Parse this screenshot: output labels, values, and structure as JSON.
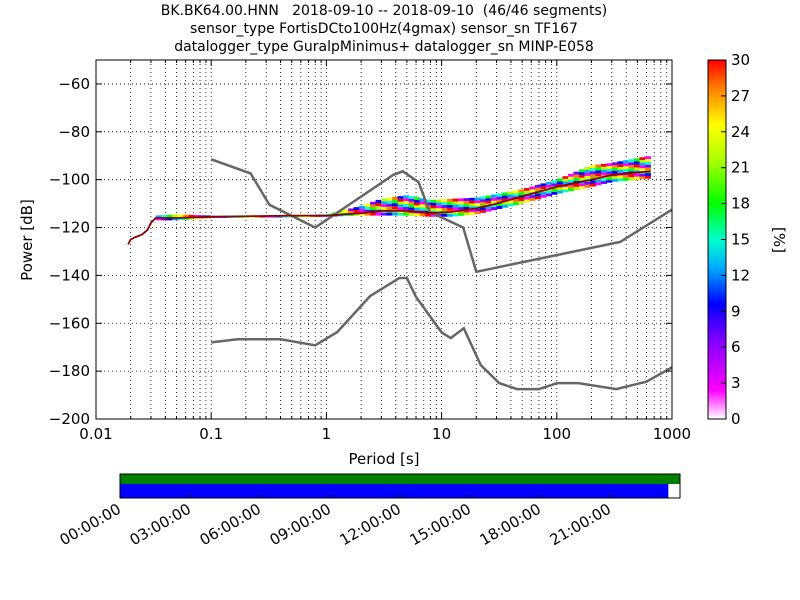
{
  "title_lines": [
    "BK.BK64.00.HNN   2018-09-10 -- 2018-09-10  (46/46 segments)",
    "sensor_type FortisDCto100Hz(4gmax) sensor_sn TF167",
    "datalogger_type GuralpMinimus+ datalogger_sn MINP-E058"
  ],
  "chart_data": [
    {
      "type": "heatmap",
      "description_free": true,
      "xlabel": "Period [s]",
      "ylabel": "Power [dB]",
      "xscale": "log",
      "xlim": [
        0.01,
        1000
      ],
      "ylim": [
        -200,
        -50
      ],
      "x_ticks": [
        {
          "v": 0.01,
          "label": "0.01"
        },
        {
          "v": 0.1,
          "label": "0.1"
        },
        {
          "v": 1,
          "label": "1"
        },
        {
          "v": 10,
          "label": "10"
        },
        {
          "v": 100,
          "label": "100"
        },
        {
          "v": 1000,
          "label": "1000"
        }
      ],
      "y_ticks": [
        {
          "v": -60,
          "label": "−60"
        },
        {
          "v": -80,
          "label": "−80"
        },
        {
          "v": -100,
          "label": "−100"
        },
        {
          "v": -120,
          "label": "−120"
        },
        {
          "v": -140,
          "label": "−140"
        },
        {
          "v": -160,
          "label": "−160"
        },
        {
          "v": -180,
          "label": "−180"
        },
        {
          "v": -200,
          "label": "−200"
        }
      ],
      "grid": "dotted",
      "colorbar": {
        "label": "[%]",
        "range": [
          0,
          30
        ],
        "ticks": [
          "0",
          "3",
          "6",
          "9",
          "12",
          "15",
          "18",
          "21",
          "24",
          "27",
          "30"
        ]
      },
      "noise_model_high": {
        "x": [
          0.1,
          0.22,
          0.32,
          0.8,
          3.8,
          4.6,
          6.3,
          7.9,
          15.4,
          20,
          354.8,
          1000
        ],
        "y": [
          -91.5,
          -97.4,
          -110.5,
          -120,
          -98,
          -96.5,
          -101,
          -113.5,
          -120,
          -138.5,
          -126,
          -112.5
        ]
      },
      "noise_model_low": {
        "x": [
          0.1,
          0.17,
          0.4,
          0.8,
          1.24,
          2.4,
          4.3,
          5,
          6,
          10,
          12,
          15.6,
          21.9,
          31.6,
          45,
          70,
          101,
          154,
          328,
          600,
          1000
        ],
        "y": [
          -168,
          -166.7,
          -166.7,
          -169.2,
          -163.7,
          -148.6,
          -141.1,
          -141.1,
          -149,
          -163.8,
          -166.2,
          -162.1,
          -177.5,
          -185,
          -187.5,
          -187.5,
          -185,
          -185,
          -187.5,
          -184.4,
          -178.4
        ]
      },
      "psd_mode": {
        "x": [
          0.019,
          0.02,
          0.022,
          0.025,
          0.028,
          0.03,
          0.033,
          0.05,
          0.1,
          0.5,
          1,
          2,
          3,
          5,
          8,
          12,
          20,
          30,
          50,
          100,
          200,
          300,
          500,
          650
        ],
        "y": [
          -127,
          -125,
          -124,
          -123,
          -121,
          -118,
          -116,
          -116,
          -115.5,
          -115,
          -115,
          -114,
          -113,
          -113,
          -114,
          -113.5,
          -112,
          -110,
          -107,
          -103,
          -100,
          -98,
          -97,
          -96.5
        ]
      },
      "psd_spread": {
        "x": [
          0.033,
          0.05,
          0.1,
          0.5,
          1,
          2,
          3,
          5,
          8,
          12,
          20,
          30,
          50,
          100,
          200,
          300,
          500,
          650
        ],
        "upper": [
          -115,
          -114.5,
          -115,
          -115,
          -114.5,
          -111,
          -108,
          -106.5,
          -108.5,
          -108,
          -107.5,
          -106,
          -104,
          -100,
          -94,
          -93,
          -91,
          -90
        ],
        "lower": [
          -117,
          -117,
          -116,
          -115.5,
          -115.5,
          -115,
          -115,
          -115,
          -115.5,
          -115.5,
          -114.5,
          -112.5,
          -110,
          -106,
          -103,
          -101,
          -100,
          -99.5
        ]
      }
    },
    {
      "type": "bar",
      "title": "",
      "description_free": true,
      "xlim_hours": [
        0,
        24
      ],
      "tick_labels": [
        "00:00:00",
        "03:00:00",
        "06:00:00",
        "09:00:00",
        "12:00:00",
        "15:00:00",
        "18:00:00",
        "21:00:00"
      ],
      "data_coverage_hours": [
        0,
        24
      ],
      "psd_coverage_hours": [
        0,
        23.5
      ],
      "coverage_color": "#008000",
      "psd_color": "#0000ff"
    }
  ]
}
